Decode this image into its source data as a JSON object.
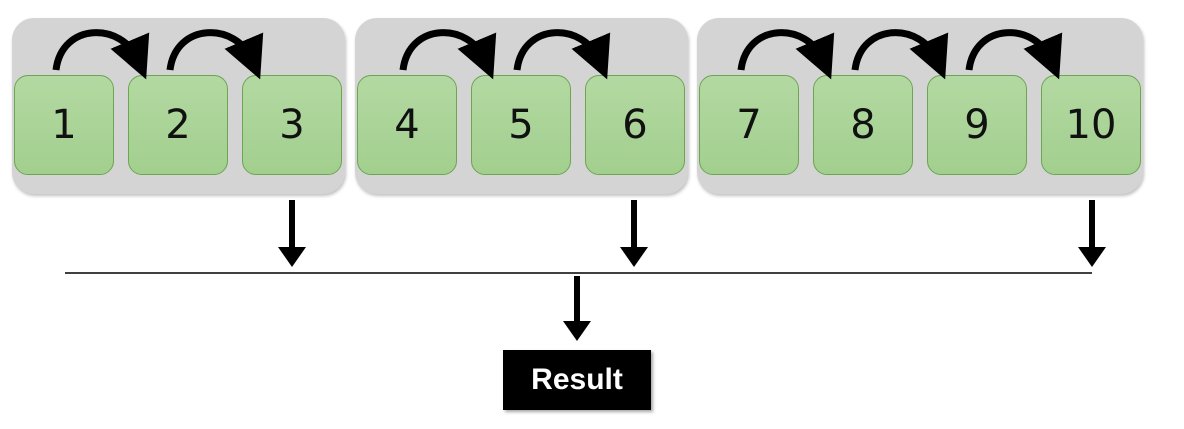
{
  "groups": [
    {
      "steps": [
        "1",
        "2",
        "3"
      ]
    },
    {
      "steps": [
        "4",
        "5",
        "6"
      ]
    },
    {
      "steps": [
        "7",
        "8",
        "9",
        "10"
      ]
    }
  ],
  "result": {
    "label": "Result"
  },
  "colors": {
    "group_bg": "#d4d4d4",
    "step_fill": "#a9d396",
    "step_border": "#6da552",
    "arrow": "#000000",
    "result_bg": "#000000",
    "result_text": "#ffffff"
  },
  "icons": {
    "sequential_arrow": "curved-arrow-icon",
    "output_arrow": "down-arrow-icon"
  }
}
